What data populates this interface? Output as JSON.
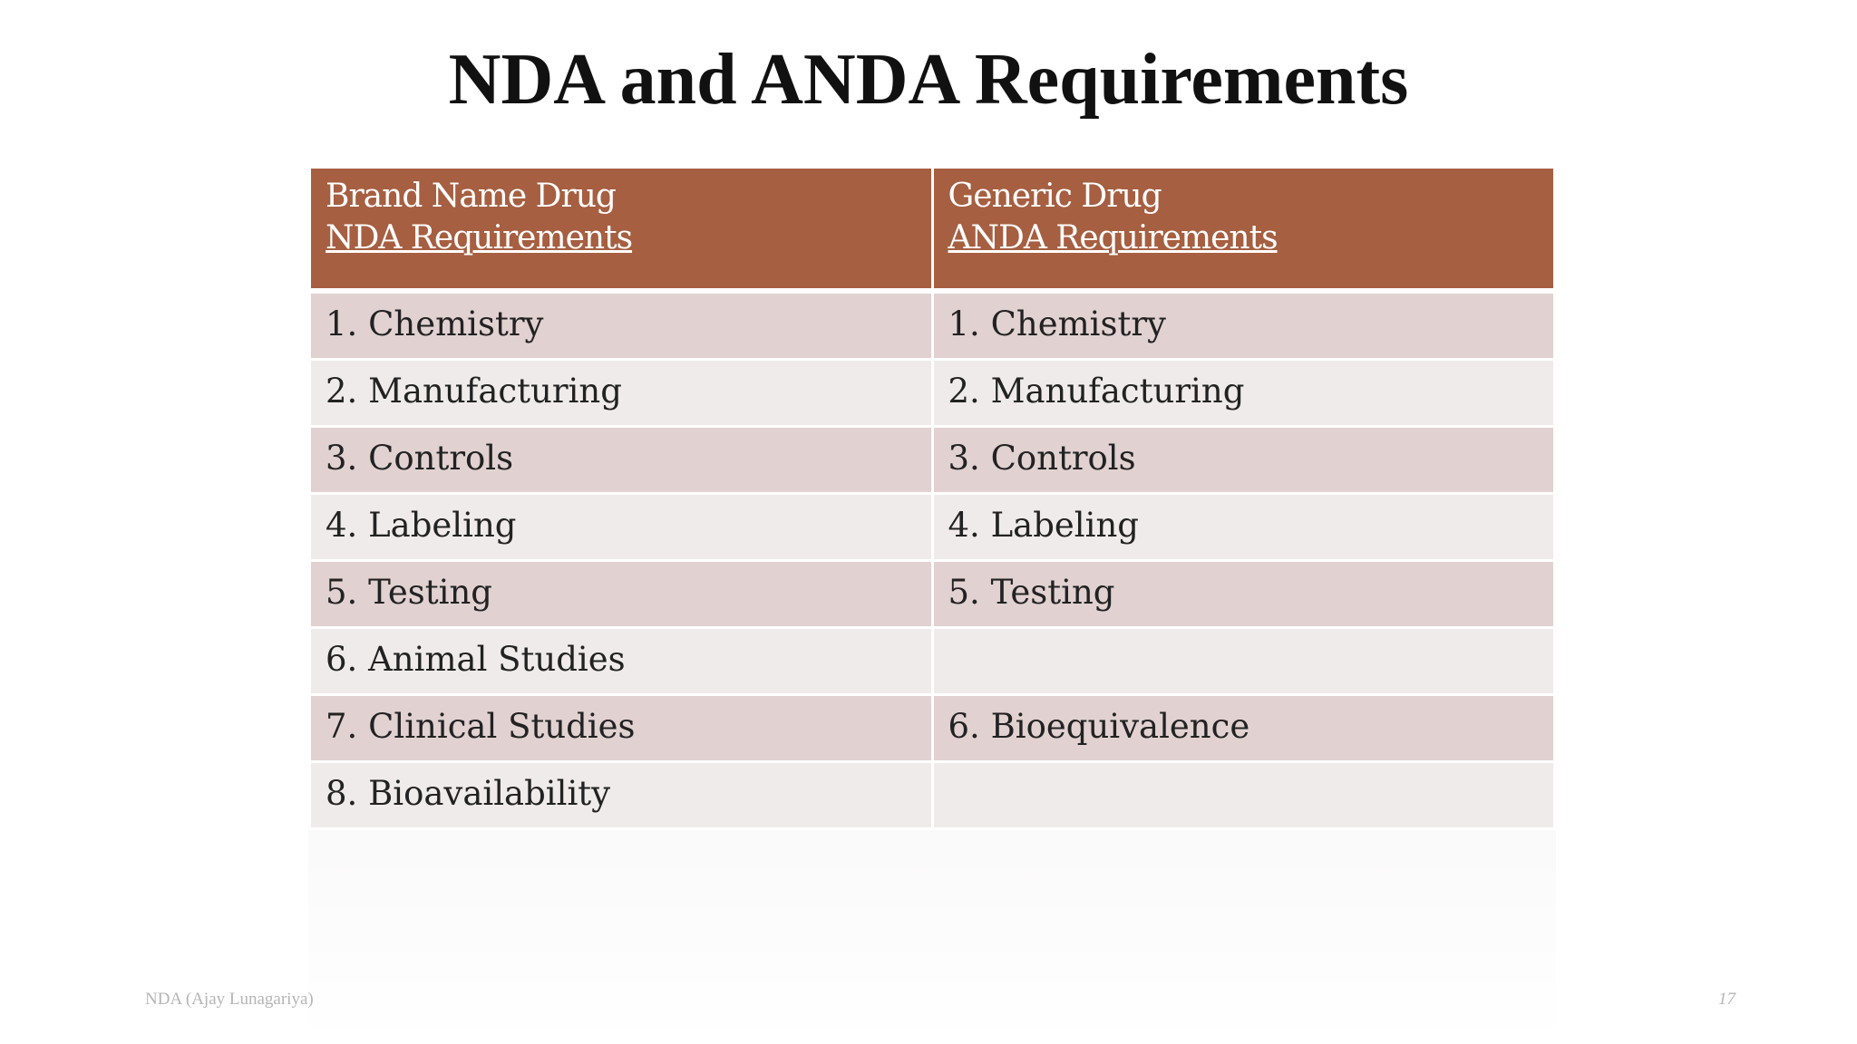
{
  "slide": {
    "title": "NDA and ANDA Requirements"
  },
  "table": {
    "headers": [
      {
        "line1": "Brand Name Drug",
        "line2": "NDA Requirements"
      },
      {
        "line1": "Generic Drug",
        "line2": "ANDA Requirements"
      }
    ],
    "rows": [
      [
        "1. Chemistry",
        "1. Chemistry"
      ],
      [
        "2. Manufacturing",
        "2. Manufacturing"
      ],
      [
        "3. Controls",
        "3. Controls"
      ],
      [
        "4. Labeling",
        "4. Labeling"
      ],
      [
        "5. Testing",
        "5. Testing"
      ],
      [
        "6. Animal Studies",
        ""
      ],
      [
        "7. Clinical Studies",
        "6. Bioequivalence"
      ],
      [
        "8. Bioavailability",
        ""
      ]
    ],
    "colors": {
      "header": "#a65f41",
      "row_odd": "#e1d1d1",
      "row_even": "#efebea"
    }
  },
  "footer": {
    "left": "NDA (Ajay Lunagariya)",
    "page_number": "17"
  }
}
